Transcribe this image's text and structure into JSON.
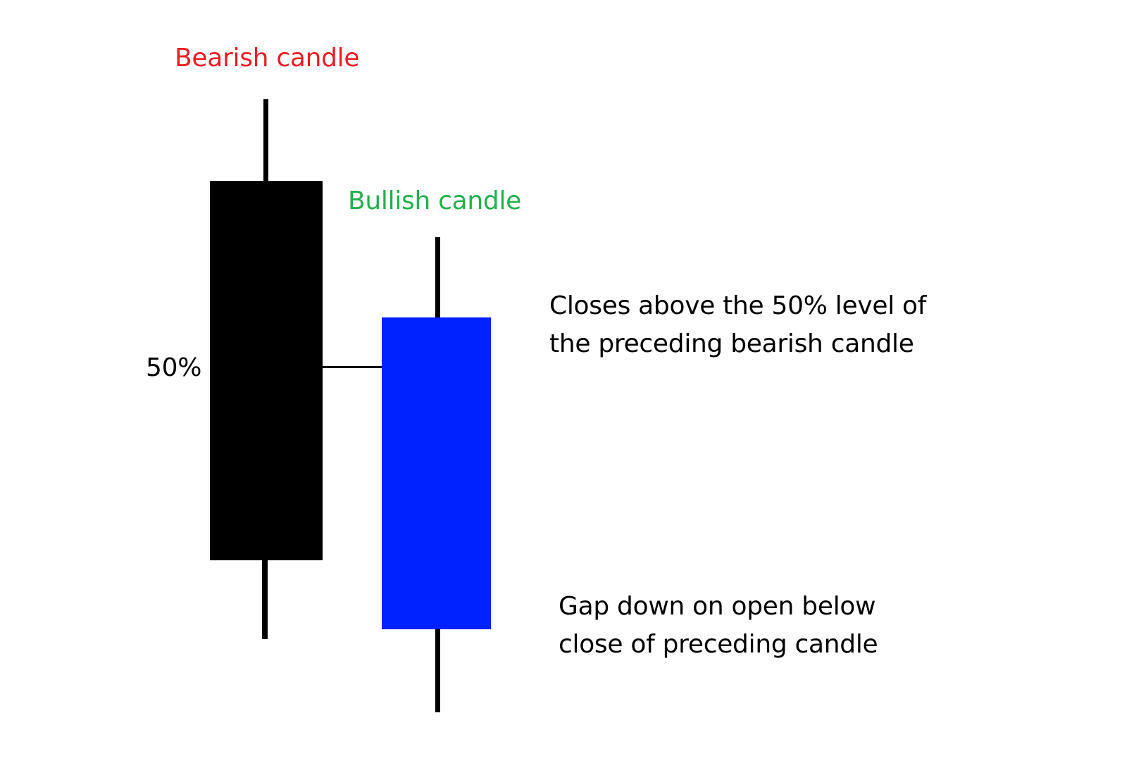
{
  "diagram": {
    "bearish": {
      "label": "Bearish candle",
      "color": "#000000",
      "label_color": "#ed1c24"
    },
    "bullish": {
      "label": "Bullish candle",
      "color": "#0022ff",
      "label_color": "#22b14c"
    },
    "midpoint_label": "50%",
    "annotations": {
      "close_above": [
        "Closes above the 50% level of",
        "the preceding bearish candle"
      ],
      "gap_down": [
        "Gap down on open below",
        "close of preceding candle"
      ]
    }
  }
}
